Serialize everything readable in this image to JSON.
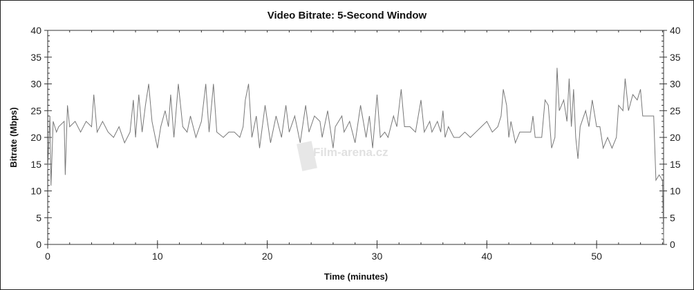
{
  "chart_data": {
    "type": "line",
    "title": "Video Bitrate: 5-Second Window",
    "xlabel": "Time (minutes)",
    "ylabel": "Bitrate (Mbps)",
    "xlim": [
      0,
      56.1
    ],
    "ylim": [
      0,
      40
    ],
    "x_ticks": [
      0,
      10,
      20,
      30,
      40,
      50
    ],
    "y_ticks": [
      0,
      5,
      10,
      15,
      20,
      25,
      30,
      35,
      40
    ],
    "y_axis_mirrored_right": true,
    "grid": false,
    "line_color": "#777777",
    "watermark": "Film-arena.cz",
    "series": [
      {
        "x": [
          0,
          0.2,
          0.3,
          0.5,
          0.8,
          1,
          1.5,
          1.6,
          1.8,
          2,
          2.5,
          3,
          3.5,
          4,
          4.2,
          4.5,
          5,
          5.5,
          6,
          6.5,
          7,
          7.5,
          7.8,
          8,
          8.3,
          8.6,
          8.9,
          9.2,
          9.5,
          10,
          10.3,
          10.7,
          11,
          11.2,
          11.5,
          11.9,
          12.3,
          12.7,
          13,
          13.5,
          14,
          14.4,
          14.7,
          15.1,
          15.4,
          16,
          16.5,
          17,
          17.5,
          17.8,
          18,
          18.3,
          18.6,
          19,
          19.3,
          19.8,
          20.3,
          20.8,
          21.3,
          21.7,
          22,
          22.5,
          23,
          23.5,
          23.8,
          24.3,
          24.8,
          25,
          25.5,
          26,
          26.2,
          26.8,
          27,
          27.5,
          28,
          28.5,
          29,
          29.3,
          29.6,
          30,
          30.3,
          30.7,
          31,
          31.5,
          31.8,
          32.2,
          32.5,
          33,
          33.5,
          34,
          34.3,
          34.8,
          35,
          35.5,
          35.8,
          36,
          36.2,
          36.5,
          37,
          37.5,
          38,
          38.5,
          39,
          39.5,
          40,
          40.5,
          41,
          41.3,
          41.5,
          41.8,
          42,
          42.2,
          42.6,
          43,
          43.5,
          44,
          44.2,
          44.4,
          45,
          45.3,
          45.6,
          45.9,
          46.2,
          46.4,
          46.6,
          47,
          47.3,
          47.5,
          47.7,
          47.9,
          48.1,
          48.3,
          48.5,
          49,
          49.3,
          49.6,
          50,
          50.3,
          50.6,
          51,
          51.4,
          51.8,
          52,
          52.4,
          52.6,
          52.9,
          53.3,
          53.7,
          54,
          54.2,
          54.6,
          55,
          55.2,
          55.4,
          55.7,
          56,
          56.1
        ],
        "y": [
          14,
          24,
          11,
          23,
          21,
          22,
          23,
          13,
          26,
          22,
          23,
          21,
          23,
          22,
          28,
          21,
          23,
          21,
          20,
          22,
          19,
          21,
          27,
          20,
          28,
          21,
          26,
          30,
          23,
          18,
          22,
          25,
          22,
          28,
          20,
          30,
          22,
          21,
          24,
          20,
          23,
          30,
          21,
          30,
          21,
          20,
          21,
          21,
          20,
          22,
          27,
          30,
          20,
          24,
          18,
          26,
          19,
          24,
          20,
          26,
          21,
          24,
          19,
          26,
          21,
          24,
          23,
          20,
          25,
          18,
          22,
          24,
          21,
          23,
          19,
          26,
          20,
          24,
          18,
          28,
          20,
          21,
          20,
          24,
          22,
          29,
          22,
          22,
          21,
          27,
          21,
          23,
          21,
          23,
          21,
          25,
          20,
          22,
          20,
          20,
          21,
          20,
          21,
          22,
          23,
          21,
          22,
          24,
          29,
          26,
          20,
          23,
          19,
          21,
          21,
          21,
          24,
          20,
          20,
          27,
          26,
          18,
          20,
          33,
          25,
          27,
          23,
          31,
          22,
          29,
          20,
          16,
          22,
          25,
          22,
          27,
          22,
          22,
          18,
          20,
          18,
          20,
          26,
          25,
          31,
          25,
          28,
          27,
          29,
          24,
          24,
          24,
          24,
          12,
          13,
          12,
          1
        ]
      }
    ]
  }
}
